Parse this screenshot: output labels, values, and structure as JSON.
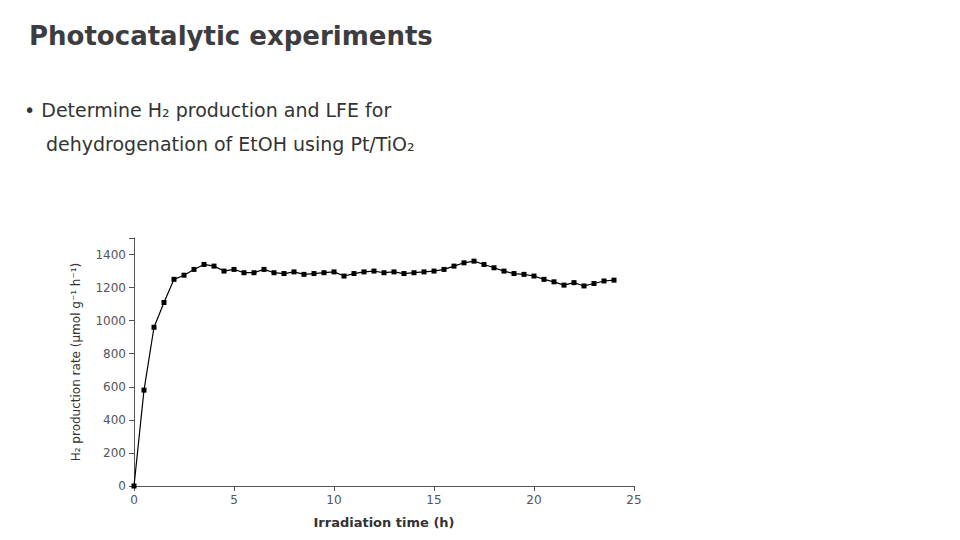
{
  "chart_data": {
    "type": "line",
    "title": "Photocatalytic experiments",
    "annotations": [
      "• Determine H₂ production and LFE for",
      "dehydrogenation of EtOH using Pt/TiO₂"
    ],
    "xlabel": "Irradiation time (h)",
    "ylabel": "H₂ production rate (μmol g⁻¹ h⁻¹)",
    "x": [
      0.0,
      0.5,
      1.0,
      1.5,
      2.0,
      2.5,
      3.0,
      3.5,
      4.0,
      4.5,
      5.0,
      5.5,
      6.0,
      6.5,
      7.0,
      7.5,
      8.0,
      8.5,
      9.0,
      9.5,
      10.0,
      10.5,
      11.0,
      11.5,
      12.0,
      12.5,
      13.0,
      13.5,
      14.0,
      14.5,
      15.0,
      15.5,
      16.0,
      16.5,
      17.0,
      17.5,
      18.0,
      18.5,
      19.0,
      19.5,
      20.0,
      20.5,
      21.0,
      21.5,
      22.0,
      22.5,
      23.0,
      23.5,
      24.0
    ],
    "values": [
      0,
      580,
      960,
      1110,
      1250,
      1275,
      1310,
      1340,
      1330,
      1300,
      1310,
      1290,
      1290,
      1310,
      1290,
      1285,
      1295,
      1280,
      1285,
      1290,
      1295,
      1270,
      1285,
      1295,
      1300,
      1290,
      1295,
      1285,
      1290,
      1295,
      1300,
      1310,
      1330,
      1350,
      1360,
      1340,
      1320,
      1300,
      1285,
      1280,
      1270,
      1250,
      1235,
      1215,
      1230,
      1210,
      1225,
      1240,
      1245
    ],
    "color": "#000000",
    "marker": "square",
    "xlim": [
      0,
      25
    ],
    "ylim": [
      0,
      1500
    ],
    "xticks": [
      0,
      5,
      10,
      15,
      20,
      25
    ],
    "yticks": [
      0,
      200,
      400,
      600,
      800,
      1000,
      1200,
      1400
    ],
    "grid": false
  }
}
